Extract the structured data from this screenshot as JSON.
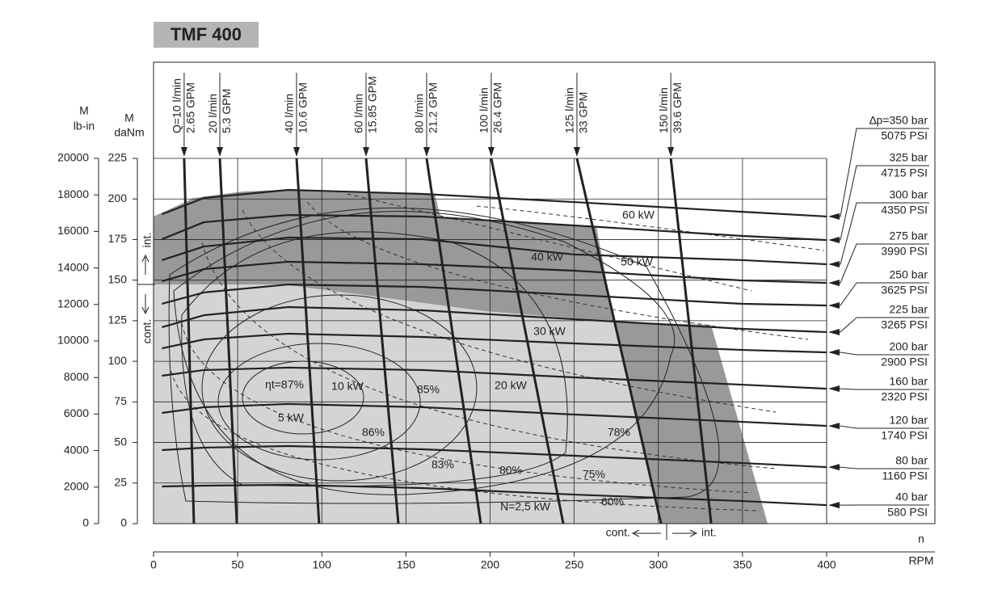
{
  "header": {
    "title": "TMF 400"
  },
  "chart_data": {
    "type": "performance-map",
    "x_label": "n",
    "x_unit": "RPM",
    "y_label": "M",
    "y_unit": "daNm",
    "y2_label": "M",
    "y2_unit": "lb-in",
    "xlim": [
      0,
      400
    ],
    "xticks": [
      0,
      50,
      100,
      150,
      200,
      250,
      300,
      350,
      400
    ],
    "ylim": [
      0,
      225
    ],
    "yticks": [
      0,
      25,
      50,
      75,
      100,
      125,
      150,
      175,
      200,
      225
    ],
    "y2lim": [
      0,
      20000
    ],
    "y2ticks": [
      0,
      2000,
      4000,
      6000,
      8000,
      10000,
      12000,
      14000,
      16000,
      18000,
      20000
    ],
    "grid": true,
    "pressure_x": [
      5,
      30,
      80,
      160,
      250,
      350,
      400
    ],
    "pressure_curves": [
      {
        "name": "∆p=350 bar",
        "psi": "5075 PSI",
        "values": [
          190.6,
          200.6,
          205.6,
          203.1,
          198.1,
          192.1,
          189.2
        ]
      },
      {
        "name": "325 bar",
        "psi": "4715 PSI",
        "values": [
          175.2,
          185.7,
          190.1,
          189.2,
          183.7,
          177.2,
          174.7
        ]
      },
      {
        "name": "300 bar",
        "psi": "4350 PSI",
        "values": [
          162.3,
          170.7,
          176.2,
          175.2,
          165.8,
          162.3,
          159.8
        ]
      },
      {
        "name": "275 bar",
        "psi": "3990 PSI",
        "values": [
          149.3,
          156.8,
          161.3,
          159.8,
          155.8,
          149.8,
          148.3
        ]
      },
      {
        "name": "250 bar",
        "psi": "3625 PSI",
        "values": [
          135.4,
          142.4,
          147.3,
          145.8,
          140.9,
          135.4,
          134.4
        ]
      },
      {
        "name": "225 bar",
        "psi": "3265 PSI",
        "values": [
          121.0,
          128.4,
          133.4,
          131.4,
          125.9,
          120.0,
          118.0
        ]
      },
      {
        "name": "200 bar",
        "psi": "2900 PSI",
        "values": [
          108.0,
          113.5,
          117.0,
          115.0,
          111.0,
          107.0,
          105.5
        ]
      },
      {
        "name": "160 bar",
        "psi": "2320 PSI",
        "values": [
          91.1,
          94.6,
          96.1,
          94.6,
          90.1,
          85.6,
          83.1
        ]
      },
      {
        "name": "120 bar",
        "psi": "1740 PSI",
        "values": [
          68.2,
          71.7,
          73.7,
          71.7,
          67.2,
          62.7,
          60.2
        ]
      },
      {
        "name": "80 bar",
        "psi": "1160 PSI",
        "values": [
          45.3,
          46.8,
          47.8,
          45.8,
          41.8,
          37.3,
          34.8
        ]
      },
      {
        "name": "40 bar",
        "psi": "580 PSI",
        "values": [
          22.9,
          23.4,
          23.9,
          21.9,
          17.9,
          13.9,
          11.4
        ]
      }
    ],
    "flow_lines": [
      {
        "name": "Q=10 l/min",
        "gpm": "2.65 GPM",
        "x": [
          18.2,
          24
        ],
        "values": [
          225,
          0
        ]
      },
      {
        "name": "20 l/min",
        "gpm": "5.3 GPM",
        "x": [
          39.4,
          49.5
        ],
        "values": [
          225,
          0
        ]
      },
      {
        "name": "40 l/min",
        "gpm": "10.6 GPM",
        "x": [
          85,
          98.4
        ],
        "values": [
          225,
          0
        ]
      },
      {
        "name": "60 l/min",
        "gpm": "15.85 GPM",
        "x": [
          126.3,
          145.5
        ],
        "values": [
          225,
          0
        ]
      },
      {
        "name": "80 l/min",
        "gpm": "21.2 GPM",
        "x": [
          162.3,
          194.5
        ],
        "values": [
          225,
          0
        ]
      },
      {
        "name": "100 l/min",
        "gpm": "26.4 GPM",
        "x": [
          200.7,
          243.5
        ],
        "values": [
          225,
          0
        ]
      },
      {
        "name": "125 l/min",
        "gpm": "33 GPM",
        "x": [
          251.6,
          301.6
        ],
        "values": [
          225,
          0
        ]
      },
      {
        "name": "150 l/min",
        "gpm": "39.6 GPM",
        "x": [
          307.4,
          331.4
        ],
        "values": [
          225,
          0
        ]
      }
    ],
    "annotations": [
      "60 kW",
      "50 kW",
      "40 kW",
      "30 kW",
      "20 kW",
      "10 kW",
      "5 kW",
      "N=2,5 kW",
      "ηt=87%",
      "86%",
      "85%",
      "83%",
      "80%",
      "78%",
      "75%",
      "60%"
    ],
    "region_labels": {
      "int": "int.",
      "cont": "cont."
    }
  }
}
